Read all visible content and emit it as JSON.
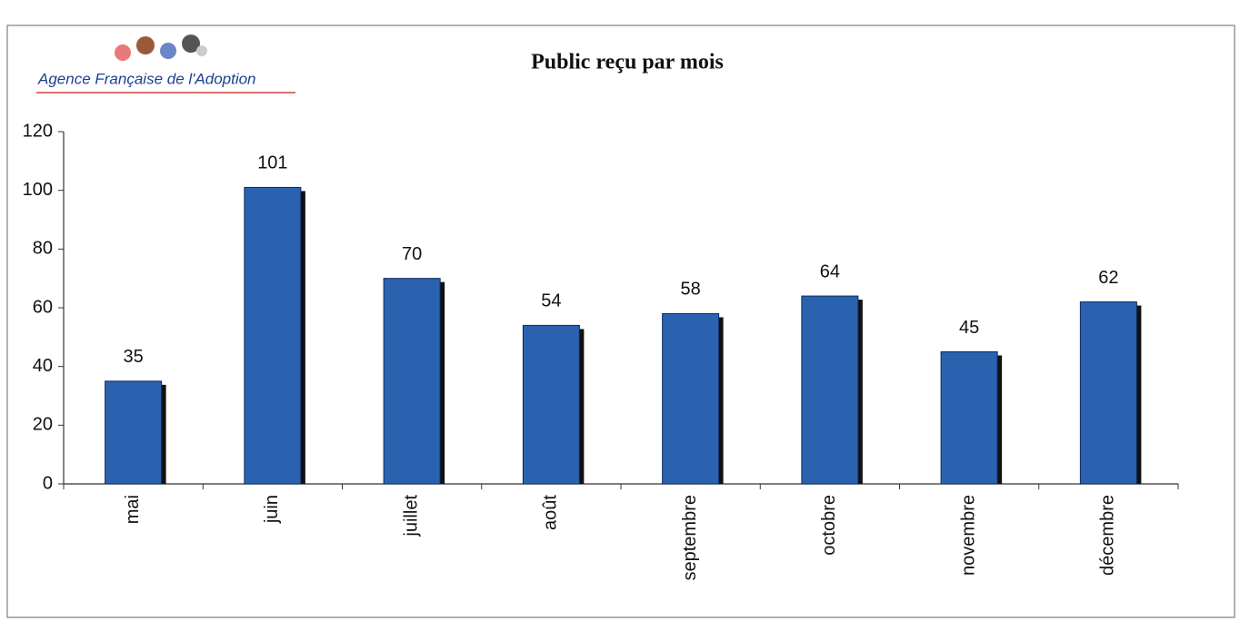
{
  "logo": "Agence Française de l'Adoption",
  "chart_data": {
    "type": "bar",
    "title": "Public reçu par mois",
    "categories": [
      "mai",
      "juin",
      "juillet",
      "août",
      "septembre",
      "octobre",
      "novembre",
      "décembre"
    ],
    "values": [
      35,
      101,
      70,
      54,
      58,
      64,
      45,
      62
    ],
    "color": "#2a62b0",
    "ylim": [
      0,
      120
    ],
    "yticks": [
      0,
      20,
      40,
      60,
      80,
      100,
      120
    ],
    "grid": false
  }
}
